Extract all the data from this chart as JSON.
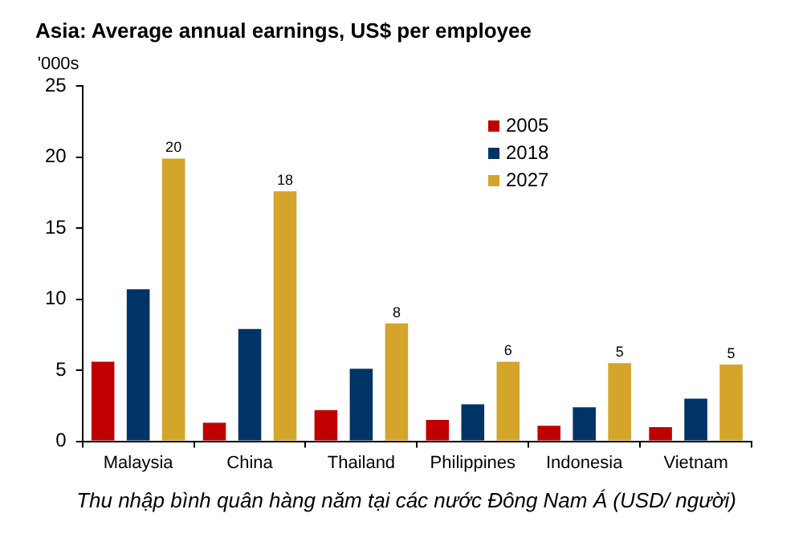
{
  "chart_data": {
    "type": "bar",
    "title": "Asia: Average annual earnings, US$ per employee",
    "ylabel": "'000s",
    "categories": [
      "Malaysia",
      "China",
      "Thailand",
      "Philippines",
      "Indonesia",
      "Vietnam"
    ],
    "series": [
      {
        "name": "2005",
        "color": "#c00000",
        "values": [
          5.6,
          1.3,
          2.2,
          1.5,
          1.1,
          1.0
        ]
      },
      {
        "name": "2018",
        "color": "#003366",
        "values": [
          10.7,
          7.9,
          5.1,
          2.6,
          2.4,
          3.0
        ]
      },
      {
        "name": "2027",
        "color": "#d4a52a",
        "values": [
          19.9,
          17.6,
          8.3,
          5.6,
          5.5,
          5.4
        ],
        "value_labels": [
          "20",
          "18",
          "8",
          "6",
          "5",
          "5"
        ]
      }
    ],
    "ylim": [
      0,
      25
    ],
    "yticks": [
      0,
      5,
      10,
      15,
      20,
      25
    ],
    "grid": false,
    "legend": "top right",
    "annotations": [
      "Thu nhập bình quân hàng năm tại các nước Đông Nam Á (USD/ người)"
    ]
  }
}
